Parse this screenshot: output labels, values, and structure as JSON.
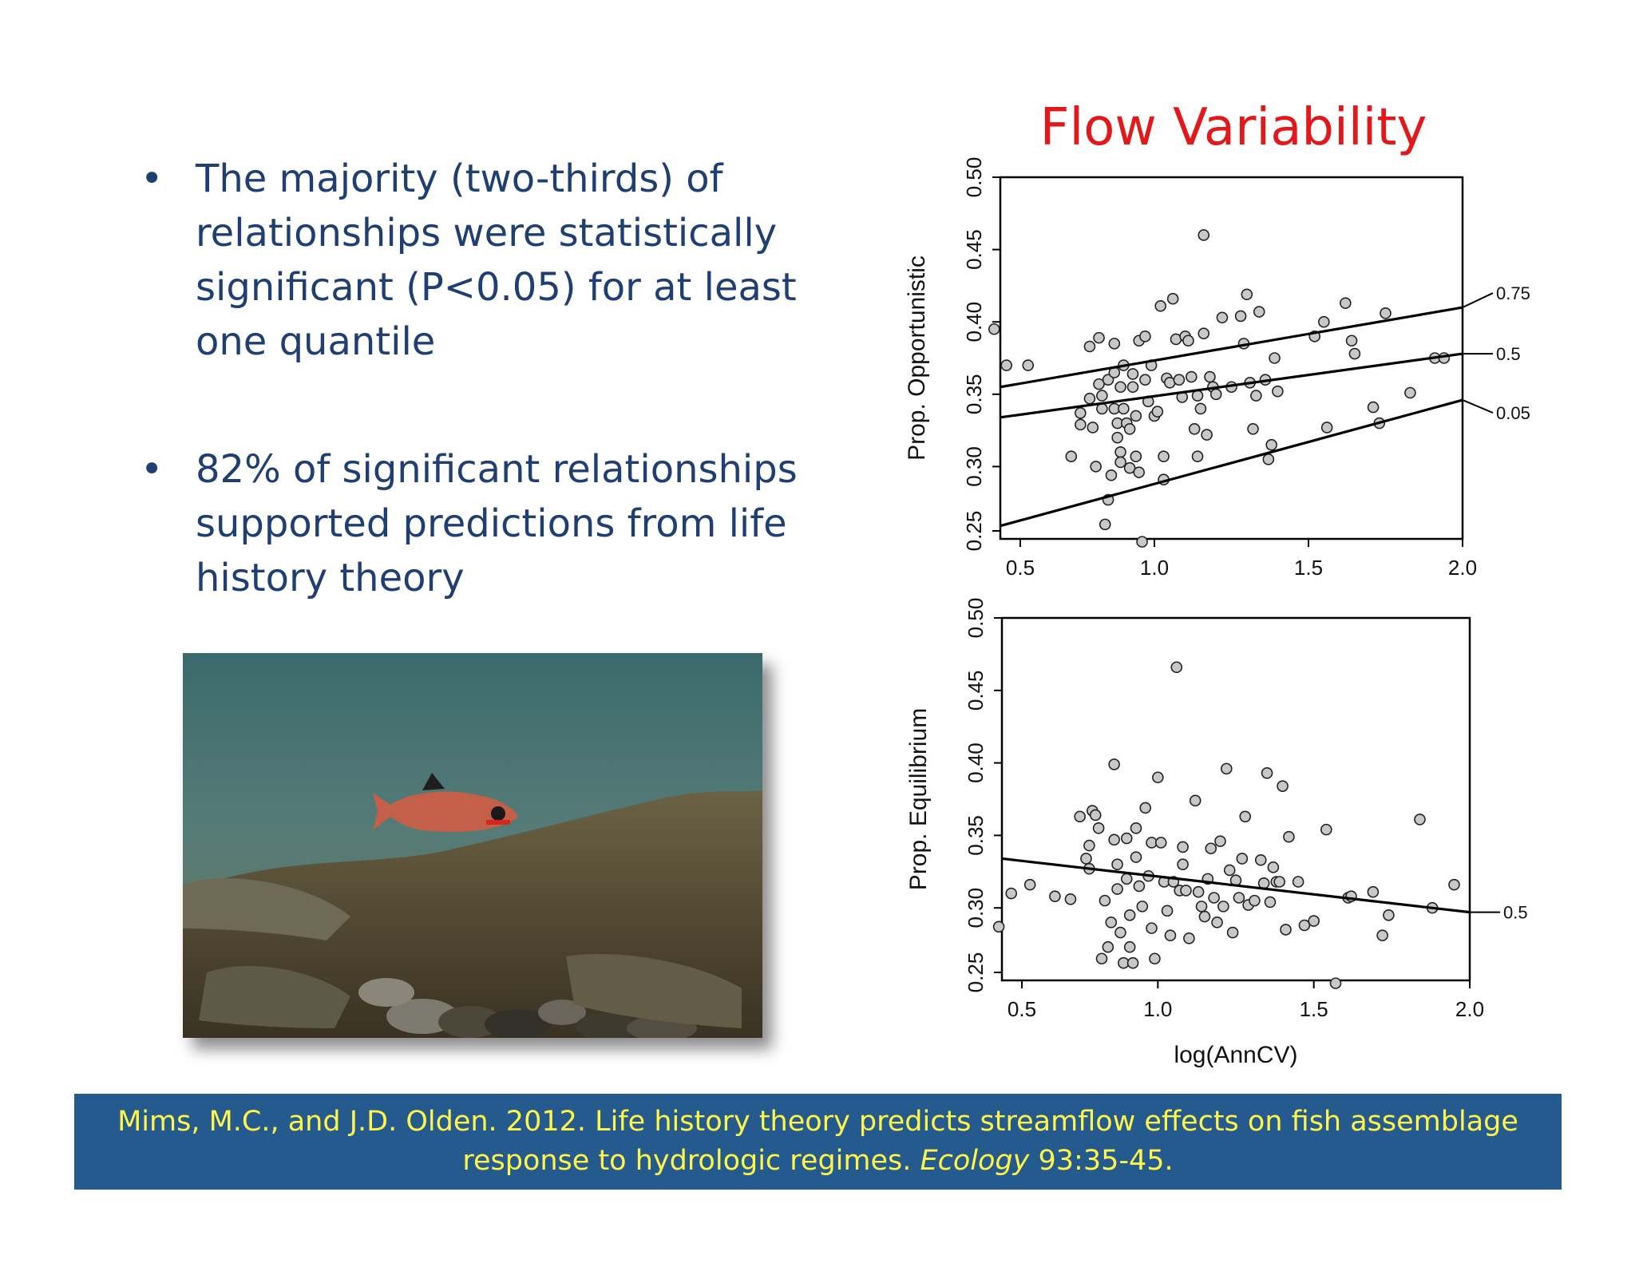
{
  "bullets": [
    "The majority (two-thirds) of relationships were statistically significant (P<0.05) for at least one quantile",
    "82% of significant relationships supported predictions from life history theory"
  ],
  "bullet_glyph": "•",
  "chart_title": "Flow Variability",
  "citation": {
    "line1": "Mims, M.C., and J.D. Olden. 2012. Life history theory predicts streamflow effects on fish assemblage",
    "line2_prefix": "response to hydrologic regimes. ",
    "journal": "Ecology",
    "line2_suffix": " 93:35-45."
  },
  "colors": {
    "title": "#e3181a",
    "bullet_text": "#1f3f73",
    "citation_bg": "#255a8e",
    "citation_text": "#fff64a",
    "point_fill": "#c8c8c8"
  },
  "photo": {
    "icon": "fish-photo",
    "subject": "underwater stream fish"
  },
  "chart_data": [
    {
      "type": "scatter",
      "title": "",
      "xlabel": "",
      "ylabel": "Prop. Opportunistic",
      "xlim": [
        0.5,
        2.0
      ],
      "ylim": [
        0.25,
        0.5
      ],
      "xticks": [
        "0.5",
        "1.0",
        "1.5",
        "2.0"
      ],
      "yticks": [
        "0.25",
        "0.30",
        "0.35",
        "0.40",
        "0.45",
        "0.50"
      ],
      "quantile_lines": [
        {
          "label": "0.75",
          "x": [
            0.5,
            2.0
          ],
          "y": [
            0.355,
            0.41
          ]
        },
        {
          "label": "0.5",
          "x": [
            0.5,
            2.0
          ],
          "y": [
            0.334,
            0.378
          ]
        },
        {
          "label": "0.05",
          "x": [
            0.5,
            2.0
          ],
          "y": [
            0.259,
            0.346
          ]
        }
      ],
      "points": [
        [
          0.48,
          0.395
        ],
        [
          0.52,
          0.37
        ],
        [
          0.59,
          0.37
        ],
        [
          0.73,
          0.307
        ],
        [
          0.76,
          0.337
        ],
        [
          0.76,
          0.329
        ],
        [
          0.79,
          0.383
        ],
        [
          0.79,
          0.347
        ],
        [
          0.8,
          0.327
        ],
        [
          0.81,
          0.3
        ],
        [
          0.82,
          0.389
        ],
        [
          0.82,
          0.357
        ],
        [
          0.83,
          0.349
        ],
        [
          0.83,
          0.34
        ],
        [
          0.84,
          0.26
        ],
        [
          0.85,
          0.277
        ],
        [
          0.85,
          0.36
        ],
        [
          0.86,
          0.294
        ],
        [
          0.87,
          0.385
        ],
        [
          0.87,
          0.365
        ],
        [
          0.87,
          0.34
        ],
        [
          0.88,
          0.33
        ],
        [
          0.88,
          0.32
        ],
        [
          0.89,
          0.31
        ],
        [
          0.89,
          0.303
        ],
        [
          0.89,
          0.355
        ],
        [
          0.9,
          0.37
        ],
        [
          0.9,
          0.34
        ],
        [
          0.91,
          0.33
        ],
        [
          0.92,
          0.326
        ],
        [
          0.92,
          0.299
        ],
        [
          0.93,
          0.355
        ],
        [
          0.93,
          0.364
        ],
        [
          0.94,
          0.335
        ],
        [
          0.94,
          0.307
        ],
        [
          0.95,
          0.387
        ],
        [
          0.95,
          0.296
        ],
        [
          0.96,
          0.248
        ],
        [
          0.97,
          0.39
        ],
        [
          0.97,
          0.36
        ],
        [
          0.98,
          0.345
        ],
        [
          0.99,
          0.37
        ],
        [
          1.0,
          0.335
        ],
        [
          1.01,
          0.338
        ],
        [
          1.02,
          0.411
        ],
        [
          1.03,
          0.307
        ],
        [
          1.03,
          0.291
        ],
        [
          1.04,
          0.361
        ],
        [
          1.05,
          0.358
        ],
        [
          1.06,
          0.416
        ],
        [
          1.07,
          0.388
        ],
        [
          1.08,
          0.36
        ],
        [
          1.09,
          0.348
        ],
        [
          1.1,
          0.39
        ],
        [
          1.11,
          0.387
        ],
        [
          1.12,
          0.362
        ],
        [
          1.13,
          0.326
        ],
        [
          1.14,
          0.349
        ],
        [
          1.14,
          0.307
        ],
        [
          1.15,
          0.34
        ],
        [
          1.16,
          0.392
        ],
        [
          1.16,
          0.46
        ],
        [
          1.17,
          0.322
        ],
        [
          1.18,
          0.362
        ],
        [
          1.19,
          0.355
        ],
        [
          1.2,
          0.35
        ],
        [
          1.22,
          0.403
        ],
        [
          1.25,
          0.355
        ],
        [
          1.28,
          0.404
        ],
        [
          1.29,
          0.385
        ],
        [
          1.3,
          0.419
        ],
        [
          1.31,
          0.358
        ],
        [
          1.32,
          0.326
        ],
        [
          1.33,
          0.349
        ],
        [
          1.34,
          0.407
        ],
        [
          1.36,
          0.36
        ],
        [
          1.37,
          0.305
        ],
        [
          1.38,
          0.315
        ],
        [
          1.39,
          0.375
        ],
        [
          1.4,
          0.352
        ],
        [
          1.52,
          0.39
        ],
        [
          1.55,
          0.4
        ],
        [
          1.56,
          0.327
        ],
        [
          1.62,
          0.413
        ],
        [
          1.64,
          0.387
        ],
        [
          1.65,
          0.378
        ],
        [
          1.71,
          0.341
        ],
        [
          1.73,
          0.33
        ],
        [
          1.75,
          0.406
        ],
        [
          1.83,
          0.351
        ],
        [
          1.91,
          0.375
        ],
        [
          1.94,
          0.375
        ]
      ]
    },
    {
      "type": "scatter",
      "title": "",
      "xlabel": "log(AnnCV)",
      "ylabel": "Prop. Equilibrium",
      "xlim": [
        0.5,
        2.0
      ],
      "ylim": [
        0.25,
        0.5
      ],
      "xticks": [
        "0.5",
        "1.0",
        "1.5",
        "2.0"
      ],
      "yticks": [
        "0.25",
        "0.30",
        "0.35",
        "0.40",
        "0.45",
        "0.50"
      ],
      "quantile_lines": [
        {
          "label": "0.5",
          "x": [
            0.5,
            2.0
          ],
          "y": [
            0.334,
            0.297
          ]
        }
      ],
      "points": [
        [
          0.49,
          0.287
        ],
        [
          0.53,
          0.31
        ],
        [
          0.59,
          0.316
        ],
        [
          0.67,
          0.308
        ],
        [
          0.72,
          0.306
        ],
        [
          0.75,
          0.363
        ],
        [
          0.77,
          0.334
        ],
        [
          0.78,
          0.327
        ],
        [
          0.78,
          0.343
        ],
        [
          0.79,
          0.367
        ],
        [
          0.8,
          0.364
        ],
        [
          0.81,
          0.355
        ],
        [
          0.82,
          0.265
        ],
        [
          0.83,
          0.305
        ],
        [
          0.84,
          0.273
        ],
        [
          0.85,
          0.29
        ],
        [
          0.86,
          0.399
        ],
        [
          0.86,
          0.347
        ],
        [
          0.87,
          0.33
        ],
        [
          0.87,
          0.313
        ],
        [
          0.88,
          0.283
        ],
        [
          0.89,
          0.262
        ],
        [
          0.9,
          0.348
        ],
        [
          0.9,
          0.32
        ],
        [
          0.91,
          0.295
        ],
        [
          0.91,
          0.273
        ],
        [
          0.92,
          0.262
        ],
        [
          0.93,
          0.355
        ],
        [
          0.93,
          0.335
        ],
        [
          0.94,
          0.315
        ],
        [
          0.95,
          0.301
        ],
        [
          0.96,
          0.369
        ],
        [
          0.97,
          0.322
        ],
        [
          0.98,
          0.345
        ],
        [
          0.98,
          0.286
        ],
        [
          0.99,
          0.265
        ],
        [
          1.0,
          0.39
        ],
        [
          1.01,
          0.345
        ],
        [
          1.02,
          0.318
        ],
        [
          1.03,
          0.298
        ],
        [
          1.04,
          0.281
        ],
        [
          1.05,
          0.318
        ],
        [
          1.06,
          0.466
        ],
        [
          1.07,
          0.312
        ],
        [
          1.08,
          0.342
        ],
        [
          1.08,
          0.33
        ],
        [
          1.09,
          0.312
        ],
        [
          1.1,
          0.279
        ],
        [
          1.12,
          0.374
        ],
        [
          1.13,
          0.311
        ],
        [
          1.14,
          0.301
        ],
        [
          1.15,
          0.294
        ],
        [
          1.16,
          0.32
        ],
        [
          1.17,
          0.341
        ],
        [
          1.18,
          0.307
        ],
        [
          1.19,
          0.29
        ],
        [
          1.2,
          0.346
        ],
        [
          1.21,
          0.301
        ],
        [
          1.22,
          0.396
        ],
        [
          1.23,
          0.326
        ],
        [
          1.24,
          0.283
        ],
        [
          1.25,
          0.319
        ],
        [
          1.26,
          0.307
        ],
        [
          1.27,
          0.334
        ],
        [
          1.28,
          0.363
        ],
        [
          1.29,
          0.302
        ],
        [
          1.31,
          0.305
        ],
        [
          1.33,
          0.333
        ],
        [
          1.34,
          0.317
        ],
        [
          1.35,
          0.393
        ],
        [
          1.36,
          0.304
        ],
        [
          1.37,
          0.328
        ],
        [
          1.38,
          0.318
        ],
        [
          1.39,
          0.318
        ],
        [
          1.4,
          0.384
        ],
        [
          1.41,
          0.285
        ],
        [
          1.42,
          0.349
        ],
        [
          1.45,
          0.318
        ],
        [
          1.47,
          0.288
        ],
        [
          1.5,
          0.291
        ],
        [
          1.54,
          0.354
        ],
        [
          1.57,
          0.248
        ],
        [
          1.61,
          0.307
        ],
        [
          1.62,
          0.308
        ],
        [
          1.69,
          0.311
        ],
        [
          1.72,
          0.281
        ],
        [
          1.74,
          0.295
        ],
        [
          1.84,
          0.361
        ],
        [
          1.88,
          0.3
        ],
        [
          1.95,
          0.316
        ]
      ]
    }
  ]
}
